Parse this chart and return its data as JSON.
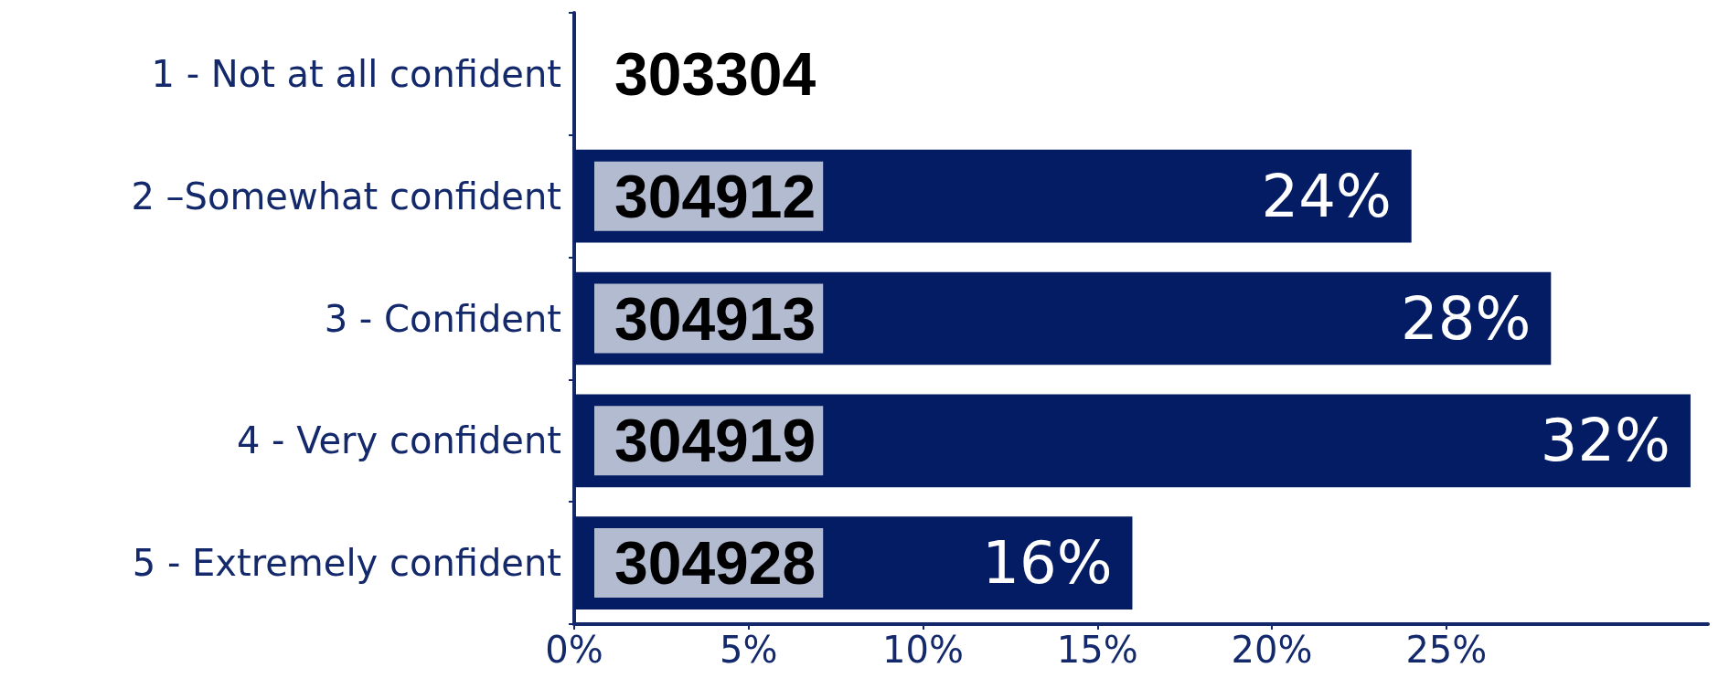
{
  "chart_data": {
    "type": "bar",
    "orientation": "horizontal",
    "categories": [
      "1 - Not at all confident",
      "2 –Somewhat confident",
      "3 - Confident",
      "4 - Very confident",
      "5 - Extremely confident"
    ],
    "values": [
      0,
      24,
      28,
      32,
      16
    ],
    "value_labels": [
      null,
      "24%",
      "28%",
      "32%",
      "16%"
    ],
    "color": "#031c63",
    "xlim": [
      0,
      32.5
    ],
    "xticks": [
      {
        "value": 0,
        "label": "0%"
      },
      {
        "value": 5,
        "label": "5%"
      },
      {
        "value": 10,
        "label": "10%"
      },
      {
        "value": 15,
        "label": "15%"
      },
      {
        "value": 20,
        "label": "20%"
      },
      {
        "value": 25,
        "label": "25%"
      }
    ],
    "annotations": [
      "303304",
      "304912",
      "304913",
      "304919",
      "304928"
    ]
  }
}
